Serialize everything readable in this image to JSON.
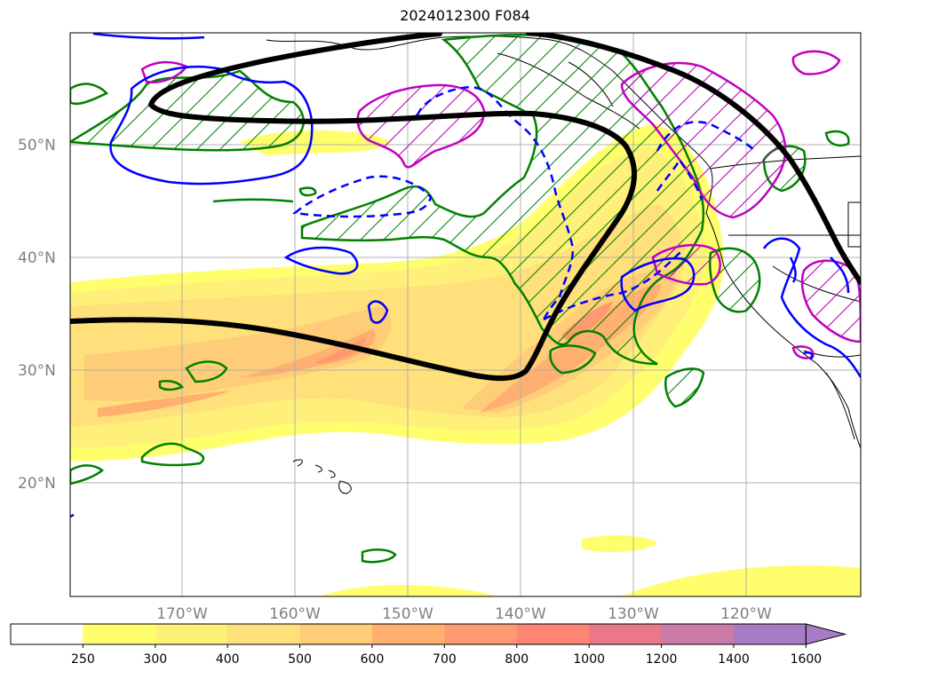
{
  "title": "2024012300 F084",
  "map": {
    "lat_labels": [
      "50°N",
      "40°N",
      "30°N",
      "20°N"
    ],
    "lon_labels": [
      "170°W",
      "160°W",
      "150°W",
      "140°W",
      "130°W",
      "120°W"
    ]
  },
  "colorbar": {
    "ticks": [
      "250",
      "300",
      "400",
      "500",
      "600",
      "700",
      "800",
      "1000",
      "1200",
      "1400",
      "1600"
    ],
    "colors": [
      "#ffffff",
      "#ffff6e",
      "#fff07a",
      "#ffe07a",
      "#ffcc77",
      "#ffb070",
      "#ff9a70",
      "#ff8577",
      "#e8788a",
      "#cc7aa8",
      "#a87bc7"
    ],
    "extend": "max"
  },
  "colors": {
    "jet_line": "#000000",
    "green_contour": "#008000",
    "blue_contour": "#0000ff",
    "magenta_contour": "#c000c0",
    "coastline": "#000000",
    "grid": "#b0b0b0"
  }
}
